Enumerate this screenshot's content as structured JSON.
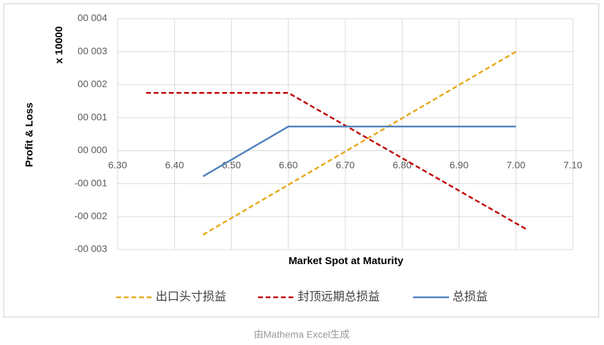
{
  "chart_data": {
    "type": "line",
    "x_label": "Market Spot at Maturity",
    "y_label": "Profit & Loss",
    "y_scale_label": "x 10000",
    "xlim": [
      6.3,
      7.1
    ],
    "xticks": [
      {
        "value": 6.3,
        "label": "6.30"
      },
      {
        "value": 6.4,
        "label": "6.40"
      },
      {
        "value": 6.5,
        "label": "6.50"
      },
      {
        "value": 6.6,
        "label": "6.60"
      },
      {
        "value": 6.7,
        "label": "6.70"
      },
      {
        "value": 6.8,
        "label": "6.80"
      },
      {
        "value": 6.9,
        "label": "6.90"
      },
      {
        "value": 7.0,
        "label": "7.00"
      },
      {
        "value": 7.1,
        "label": "7.10"
      }
    ],
    "ylim": [
      -3,
      4
    ],
    "yticks": [
      {
        "value": -3,
        "label": "-00 003"
      },
      {
        "value": -2,
        "label": "-00 002"
      },
      {
        "value": -1,
        "label": "-00 001"
      },
      {
        "value": 0,
        "label": "00 000"
      },
      {
        "value": 1,
        "label": "00 001"
      },
      {
        "value": 2,
        "label": "00 002"
      },
      {
        "value": 3,
        "label": "00 003"
      },
      {
        "value": 4,
        "label": "00 004"
      }
    ],
    "grid": true,
    "legend": "bottom",
    "series": [
      {
        "name": "出口头寸损益",
        "color": "#E6A817",
        "dashed": true,
        "x": [
          6.45,
          7.0
        ],
        "values": [
          -2.55,
          3.0
        ]
      },
      {
        "name": "封顶远期总损益",
        "color": "#C00000",
        "dashed": true,
        "x": [
          6.35,
          6.6,
          7.02
        ],
        "values": [
          1.75,
          1.75,
          -2.4
        ]
      },
      {
        "name": "总损益",
        "color": "#4F81BD",
        "dashed": false,
        "x": [
          6.45,
          6.6,
          7.0
        ],
        "values": [
          -0.78,
          0.73,
          0.73
        ]
      }
    ]
  },
  "caption": "由Mathema Excel生成"
}
